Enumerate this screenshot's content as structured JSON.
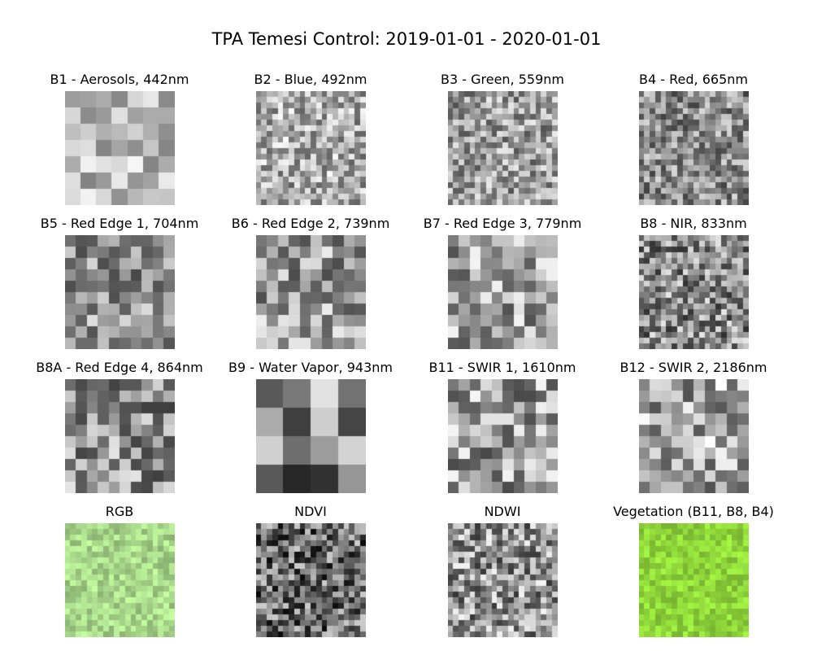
{
  "title": "TPA Temesi Control: 2019-01-01 - 2020-01-01",
  "panels": [
    {
      "label": "B1 - Aerosols, 442nm",
      "kind": "gray",
      "grid": 7,
      "seed": 11,
      "base": 0.74,
      "spread": 0.24
    },
    {
      "label": "B2 - Blue, 492nm",
      "kind": "gray",
      "grid": 20,
      "seed": 23,
      "base": 0.68,
      "spread": 0.3
    },
    {
      "label": "B3 - Green, 559nm",
      "kind": "gray",
      "grid": 20,
      "seed": 37,
      "base": 0.62,
      "spread": 0.3
    },
    {
      "label": "B4 - Red, 665nm",
      "kind": "gray",
      "grid": 20,
      "seed": 41,
      "base": 0.55,
      "spread": 0.3
    },
    {
      "label": "B5 - Red Edge 1, 704nm",
      "kind": "gray",
      "grid": 10,
      "seed": 53,
      "base": 0.58,
      "spread": 0.3
    },
    {
      "label": "B6 - Red Edge 2, 739nm",
      "kind": "gray",
      "grid": 10,
      "seed": 67,
      "base": 0.62,
      "spread": 0.32
    },
    {
      "label": "B7 - Red Edge 3, 779nm",
      "kind": "gray",
      "grid": 10,
      "seed": 71,
      "base": 0.64,
      "spread": 0.32
    },
    {
      "label": "B8 - NIR, 833nm",
      "kind": "gray",
      "grid": 20,
      "seed": 83,
      "base": 0.55,
      "spread": 0.36
    },
    {
      "label": "B8A - Red Edge 4, 864nm",
      "kind": "gray",
      "grid": 10,
      "seed": 97,
      "base": 0.58,
      "spread": 0.34
    },
    {
      "label": "B9 - Water Vapor, 943nm",
      "kind": "gray",
      "grid": 4,
      "seed": 101,
      "base": 0.52,
      "spread": 0.38
    },
    {
      "label": "B11 - SWIR 1, 1610nm",
      "kind": "gray",
      "grid": 10,
      "seed": 113,
      "base": 0.62,
      "spread": 0.34
    },
    {
      "label": "B12 - SWIR 2, 2186nm",
      "kind": "gray",
      "grid": 10,
      "seed": 127,
      "base": 0.66,
      "spread": 0.34
    },
    {
      "label": "RGB",
      "kind": "rgb",
      "grid": 20,
      "seed": 131,
      "color": "#a8d88a",
      "spread": 0.18
    },
    {
      "label": "NDVI",
      "kind": "gray",
      "grid": 20,
      "seed": 139,
      "base": 0.42,
      "spread": 0.38
    },
    {
      "label": "NDWI",
      "kind": "gray",
      "grid": 20,
      "seed": 149,
      "base": 0.58,
      "spread": 0.38
    },
    {
      "label": "Vegetation (B11, B8, B4)",
      "kind": "rgb",
      "grid": 20,
      "seed": 157,
      "color": "#8fd63a",
      "spread": 0.16
    }
  ]
}
